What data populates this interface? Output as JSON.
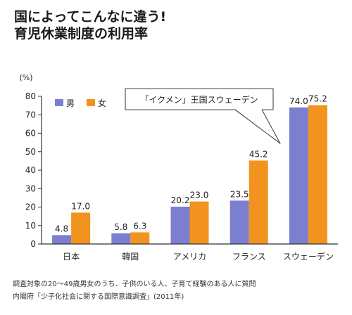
{
  "header": {
    "title_line1": "国によってこんなに違う!",
    "title_line2": "育児休業制度の利用率"
  },
  "callout": "「イクメン」王国スウェーデン",
  "notes": {
    "line1": "調査対象の20～49歳男女のうち、子供のいる人、子育て経験のある人に質問",
    "line2": "内閣府「少子化社会に関する国際意識調査」(2011年)"
  },
  "colors": {
    "male": "#7c7fd0",
    "female": "#f2931f",
    "axis": "#333333"
  },
  "chart_data": {
    "type": "bar",
    "ylabel": "(%)",
    "ylim": [
      0,
      80
    ],
    "yticks": [
      0,
      10,
      20,
      30,
      40,
      50,
      60,
      70,
      80
    ],
    "categories": [
      "日本",
      "韓国",
      "アメリカ",
      "フランス",
      "スウェーデン"
    ],
    "series": [
      {
        "name": "男",
        "values": [
          4.8,
          5.8,
          20.2,
          23.5,
          74.0
        ],
        "labels": [
          "4.8",
          "5.8",
          "20.2",
          "23.5",
          "74.0"
        ]
      },
      {
        "name": "女",
        "values": [
          17.0,
          6.3,
          23.0,
          45.2,
          75.2
        ],
        "labels": [
          "17.0",
          "6.3",
          "23.0",
          "45.2",
          "75.2"
        ]
      }
    ],
    "legend": "top-left",
    "grid": false
  }
}
